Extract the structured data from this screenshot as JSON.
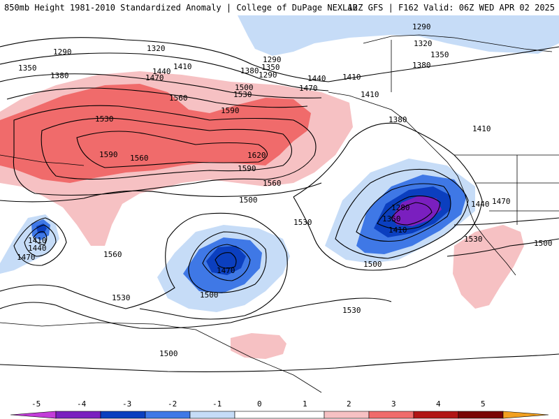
{
  "header": {
    "title_left": "850mb Height 1981-2010 Standardized Anomaly | College of DuPage NEXLAB",
    "title_right": "12Z GFS | F162 Valid: 06Z WED APR 02 2025"
  },
  "colors": {
    "anom_neg5": "#c33cd9",
    "anom_neg4": "#7a1fbf",
    "anom_neg3": "#0b3fbf",
    "anom_neg2": "#3f78e6",
    "anom_neg1": "#c6dcf7",
    "anom_pos1": "#f6c1c3",
    "anom_pos2": "#f06b6b",
    "anom_pos3": "#b11414",
    "anom_pos4": "#7a0505",
    "anom_pos5": "#f2a020"
  },
  "contour_labels": [
    "1290",
    "1320",
    "1290",
    "1350",
    "1380",
    "1440",
    "1410",
    "1470",
    "1380",
    "1350",
    "1290",
    "1500",
    "1530",
    "1560",
    "1590",
    "1530",
    "1590",
    "1560",
    "1620",
    "1590",
    "1560",
    "1440",
    "1410",
    "1470",
    "1410",
    "1380",
    "1290",
    "1320",
    "1350",
    "1380",
    "1410",
    "1500",
    "1530",
    "1560",
    "1280",
    "1350",
    "1410",
    "1500",
    "1440",
    "1470",
    "1530",
    "1500",
    "1410",
    "1440",
    "1470",
    "1470",
    "1500",
    "1530",
    "1530",
    "1500"
  ],
  "colorbar": {
    "ticks": [
      "-5",
      "-4",
      "-3",
      "-2",
      "-1",
      "0",
      "1",
      "2",
      "3",
      "4",
      "5"
    ]
  }
}
